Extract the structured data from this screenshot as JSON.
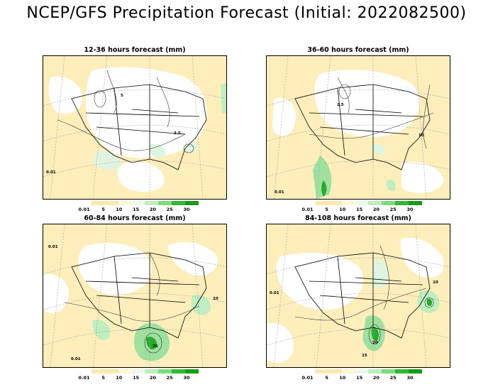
{
  "title": "NCEP/GFS Precipitation Forecast (Initial: 2022082500)",
  "legend": {
    "labels": [
      "0.01",
      "5",
      "10",
      "15",
      "20",
      "25",
      "30"
    ],
    "colors": [
      "#ffffff",
      "#fbe9b0",
      "#fbe9b0",
      "#fff6d6",
      "#eafbe8",
      "#bfeec0",
      "#7fd97f",
      "#33b833",
      "#1a9a1a"
    ]
  },
  "panels": [
    {
      "id": "p1",
      "title": "12-36 hours forecast (mm)"
    },
    {
      "id": "p2",
      "title": "36-60 hours forecast (mm)"
    },
    {
      "id": "p3",
      "title": "60-84 hours forecast (mm)"
    },
    {
      "id": "p4",
      "title": "84-108 hours forecast (mm)"
    }
  ],
  "contour_labels": [
    "0.01",
    "2.5",
    "5",
    "10",
    "15",
    "20",
    "25"
  ]
}
